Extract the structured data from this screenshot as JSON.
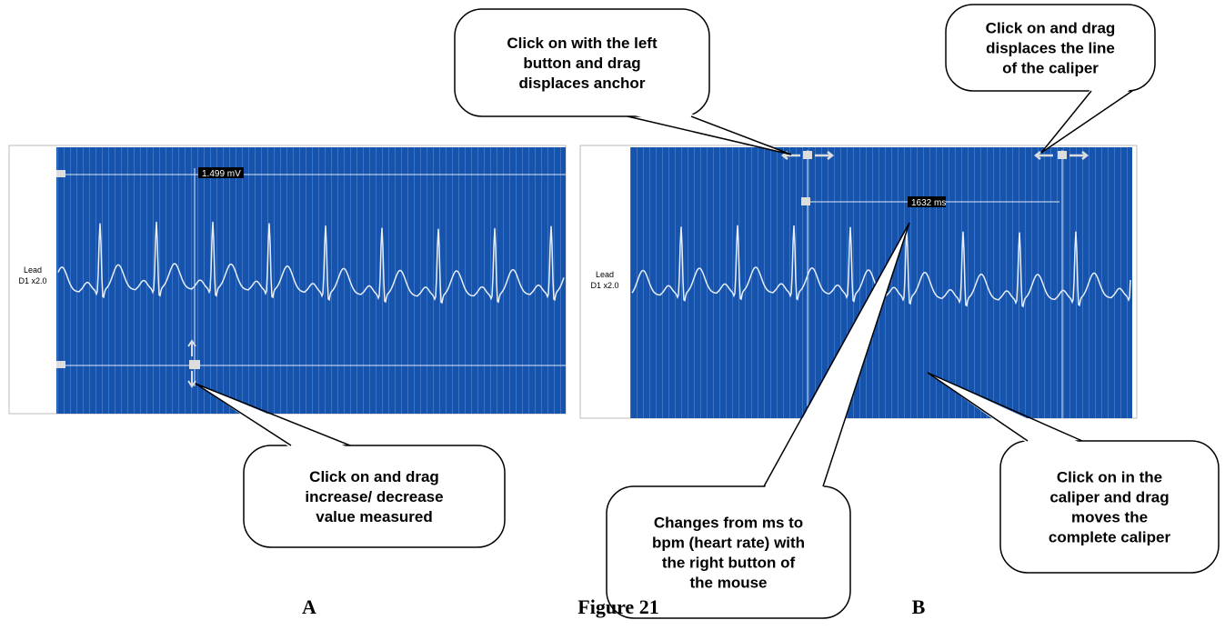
{
  "callouts": [
    {
      "lines": [
        "Click on with the left",
        "button and drag",
        "displaces anchor"
      ]
    },
    {
      "lines": [
        "Click on and drag",
        "displaces the line",
        "of the caliper"
      ]
    },
    {
      "lines": [
        "Click on and drag",
        "increase/ decrease",
        "value measured"
      ]
    },
    {
      "lines": [
        "Changes from ms to",
        "bpm (heart rate) with",
        "the right button of",
        "the mouse"
      ]
    },
    {
      "lines": [
        "Click on in the",
        "caliper and drag",
        "moves the",
        "complete caliper"
      ]
    }
  ],
  "panel_a": {
    "lead": [
      "Lead",
      "D1 x2.0"
    ],
    "measure": "1.499 mV"
  },
  "panel_b": {
    "lead": [
      "Lead",
      "D1 x2.0"
    ],
    "measure": "1632 ms"
  },
  "caption": {
    "left": "A",
    "title": "Figure 21",
    "right": "B"
  }
}
